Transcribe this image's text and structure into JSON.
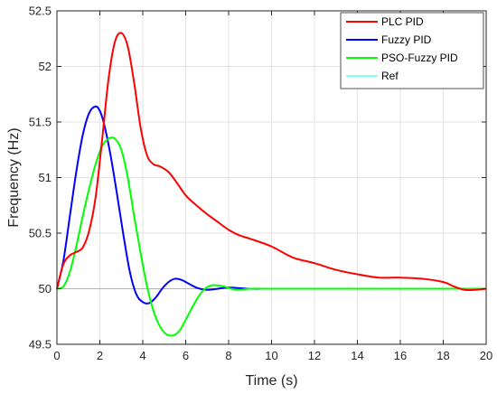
{
  "chart_data": {
    "type": "line",
    "xlabel": "Time (s)",
    "ylabel": "Frequency (Hz)",
    "xlim": [
      0,
      20
    ],
    "ylim": [
      49.5,
      52.5
    ],
    "xticks": [
      0,
      2,
      4,
      6,
      8,
      10,
      12,
      14,
      16,
      18,
      20
    ],
    "xtick_labels": [
      "0",
      "2",
      "4",
      "6",
      "8",
      "10",
      "12",
      "14",
      "16",
      "18",
      "20"
    ],
    "yticks": [
      49.5,
      50,
      50.5,
      51,
      51.5,
      52,
      52.5
    ],
    "ytick_labels": [
      "49.5",
      "50",
      "50.5",
      "51",
      "51.5",
      "52",
      "52.5"
    ],
    "grid": true,
    "legend_position": "top-right",
    "series": [
      {
        "name": "PLC PID",
        "color": "#ff0000",
        "x": [
          0,
          0.3,
          0.6,
          0.9,
          1.2,
          1.5,
          1.8,
          2.1,
          2.4,
          2.7,
          3.0,
          3.3,
          3.6,
          3.9,
          4.2,
          4.5,
          4.8,
          5.2,
          5.6,
          6.0,
          6.5,
          7.0,
          7.5,
          8.0,
          8.5,
          9.0,
          10.0,
          11.0,
          12.0,
          13.0,
          14.0,
          15.0,
          16.0,
          17.0,
          18.0,
          18.5,
          19.0,
          19.5,
          20.0
        ],
        "y": [
          50.0,
          50.22,
          50.3,
          50.33,
          50.37,
          50.52,
          50.82,
          51.33,
          51.88,
          52.22,
          52.3,
          52.18,
          51.85,
          51.45,
          51.2,
          51.12,
          51.1,
          51.05,
          50.95,
          50.84,
          50.75,
          50.67,
          50.6,
          50.53,
          50.48,
          50.45,
          50.38,
          50.28,
          50.23,
          50.17,
          50.13,
          50.1,
          50.1,
          50.09,
          50.06,
          50.02,
          49.99,
          49.99,
          50.0
        ]
      },
      {
        "name": "Fuzzy PID",
        "color": "#0000ff",
        "x": [
          0,
          0.3,
          0.6,
          0.9,
          1.2,
          1.5,
          1.8,
          2.0,
          2.2,
          2.5,
          2.8,
          3.1,
          3.4,
          3.7,
          4.0,
          4.3,
          4.6,
          4.9,
          5.2,
          5.5,
          5.8,
          6.1,
          6.5,
          7.0,
          7.5,
          8.0,
          9.0,
          10.0,
          12.0,
          14.0,
          16.0,
          18.0,
          20.0
        ],
        "y": [
          50.0,
          50.25,
          50.65,
          51.05,
          51.38,
          51.58,
          51.64,
          51.6,
          51.48,
          51.2,
          50.85,
          50.48,
          50.15,
          49.95,
          49.88,
          49.87,
          49.92,
          50.0,
          50.06,
          50.09,
          50.08,
          50.05,
          50.01,
          49.99,
          50.0,
          50.01,
          50.0,
          50.0,
          50.0,
          50.0,
          50.0,
          50.0,
          50.0
        ]
      },
      {
        "name": "PSO-Fuzzy PID",
        "color": "#00ff00",
        "x": [
          0,
          0.3,
          0.6,
          0.9,
          1.2,
          1.5,
          1.8,
          2.1,
          2.4,
          2.7,
          3.0,
          3.3,
          3.6,
          3.9,
          4.2,
          4.5,
          4.8,
          5.1,
          5.4,
          5.7,
          6.0,
          6.3,
          6.6,
          6.9,
          7.2,
          7.5,
          7.8,
          8.1,
          8.5,
          9.0,
          10.0,
          12.0,
          14.0,
          16.0,
          18.0,
          20.0
        ],
        "y": [
          50.0,
          50.02,
          50.15,
          50.38,
          50.65,
          50.9,
          51.12,
          51.28,
          51.35,
          51.35,
          51.25,
          51.0,
          50.65,
          50.32,
          50.02,
          49.8,
          49.66,
          49.59,
          49.58,
          49.62,
          49.72,
          49.83,
          49.93,
          50.0,
          50.03,
          50.03,
          50.02,
          50.0,
          49.99,
          50.0,
          50.0,
          50.0,
          50.0,
          50.0,
          50.0,
          50.0
        ]
      },
      {
        "name": "Ref",
        "color": "#00ffff",
        "x": [
          0,
          20
        ],
        "y": [
          50.0,
          50.0
        ]
      }
    ]
  }
}
